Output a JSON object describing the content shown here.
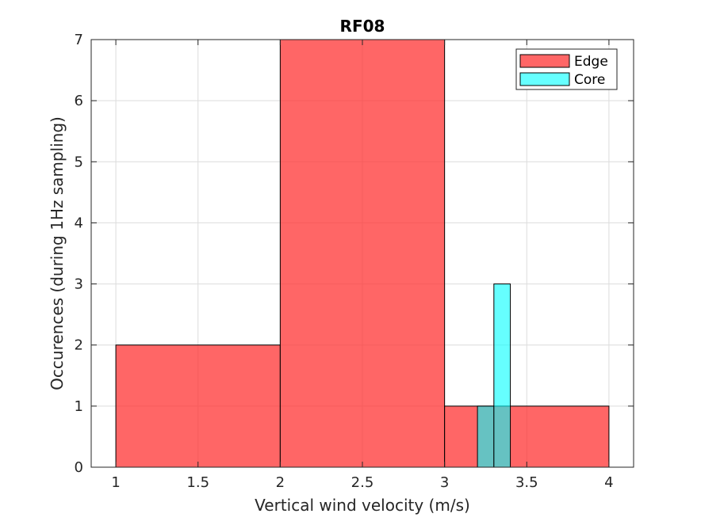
{
  "chart_data": {
    "type": "histogram",
    "title": "RF08",
    "xlabel": "Vertical wind velocity (m/s)",
    "ylabel": "Occurences (during 1Hz sampling)",
    "xlim": [
      0.85,
      4.15
    ],
    "ylim": [
      0,
      7
    ],
    "xticks": [
      "1",
      "1.5",
      "2",
      "2.5",
      "3",
      "3.5",
      "4"
    ],
    "xtick_values": [
      1,
      1.5,
      2,
      2.5,
      3,
      3.5,
      4
    ],
    "yticks": [
      "0",
      "1",
      "2",
      "3",
      "4",
      "5",
      "6",
      "7"
    ],
    "ytick_values": [
      0,
      1,
      2,
      3,
      4,
      5,
      6,
      7
    ],
    "grid": true,
    "legend_position": "top-right",
    "series": [
      {
        "name": "Edge",
        "color": "#ff3333",
        "opacity": 0.75,
        "bins": [
          {
            "x0": 1,
            "x1": 2,
            "count": 2
          },
          {
            "x0": 2,
            "x1": 3,
            "count": 7
          },
          {
            "x0": 3,
            "x1": 4,
            "count": 1
          }
        ]
      },
      {
        "name": "Core",
        "color": "#00ffff",
        "opacity": 0.6,
        "bins": [
          {
            "x0": 3.2,
            "x1": 3.3,
            "count": 1
          },
          {
            "x0": 3.3,
            "x1": 3.4,
            "count": 3
          }
        ]
      }
    ]
  }
}
